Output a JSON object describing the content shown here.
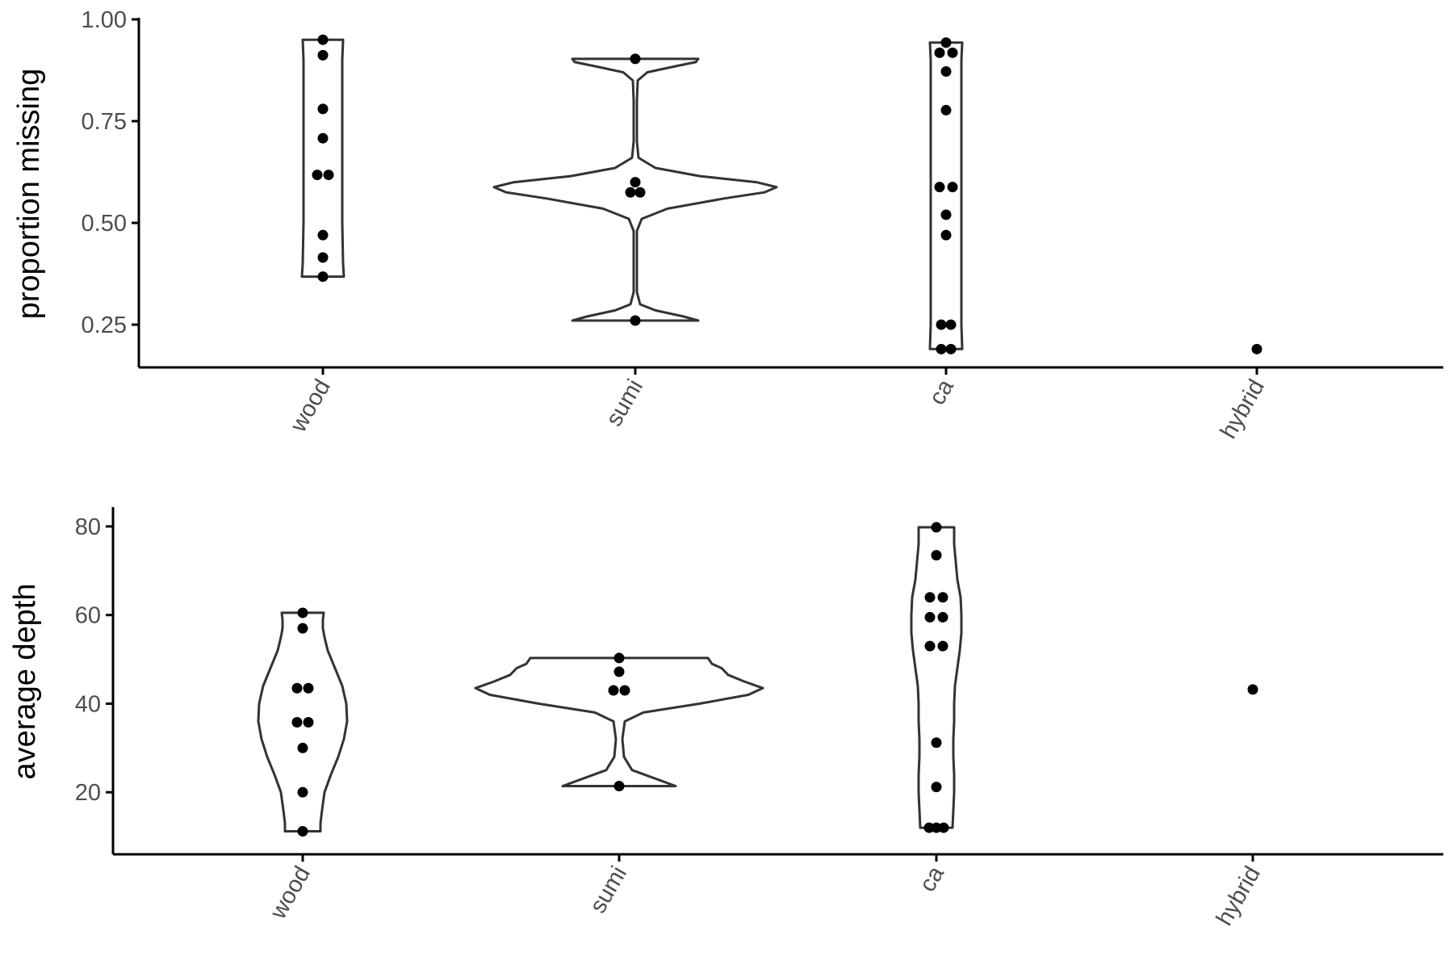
{
  "chart_data": [
    {
      "type": "violin",
      "title": "",
      "xlabel": "",
      "ylabel": "proportion missing",
      "categories": [
        "wood",
        "sumi",
        "ca",
        "hybrid"
      ],
      "ylim": [
        0.145,
        1.0
      ],
      "yticks": [
        0.25,
        0.5,
        0.75,
        1.0
      ],
      "ytick_labels": [
        "0.25",
        "0.50",
        "0.75",
        "1.00"
      ],
      "grid": false,
      "points": {
        "wood": [
          0.95,
          0.912,
          0.78,
          0.708,
          0.618,
          0.618,
          0.47,
          0.415,
          0.368
        ],
        "sumi": [
          0.903,
          0.6,
          0.575,
          0.575,
          0.26
        ],
        "ca": [
          0.943,
          0.918,
          0.918,
          0.872,
          0.777,
          0.588,
          0.588,
          0.52,
          0.47,
          0.25,
          0.25,
          0.19,
          0.19
        ],
        "hybrid": [
          0.19
        ]
      }
    },
    {
      "type": "violin",
      "title": "",
      "xlabel": "",
      "ylabel": "average depth",
      "categories": [
        "wood",
        "sumi",
        "ca",
        "hybrid"
      ],
      "ylim": [
        6,
        84
      ],
      "yticks": [
        20,
        40,
        60,
        80
      ],
      "ytick_labels": [
        "20",
        "40",
        "60",
        "80"
      ],
      "grid": false,
      "points": {
        "wood": [
          60.5,
          57,
          43.5,
          43.5,
          35.8,
          35.8,
          30,
          20,
          11.2
        ],
        "sumi": [
          50.3,
          47.2,
          43,
          43,
          21.4
        ],
        "ca": [
          79.8,
          73.5,
          64,
          64,
          59.5,
          59.5,
          53,
          53,
          31.2,
          21.2,
          12,
          12,
          12
        ],
        "hybrid": [
          43.2
        ]
      }
    }
  ]
}
